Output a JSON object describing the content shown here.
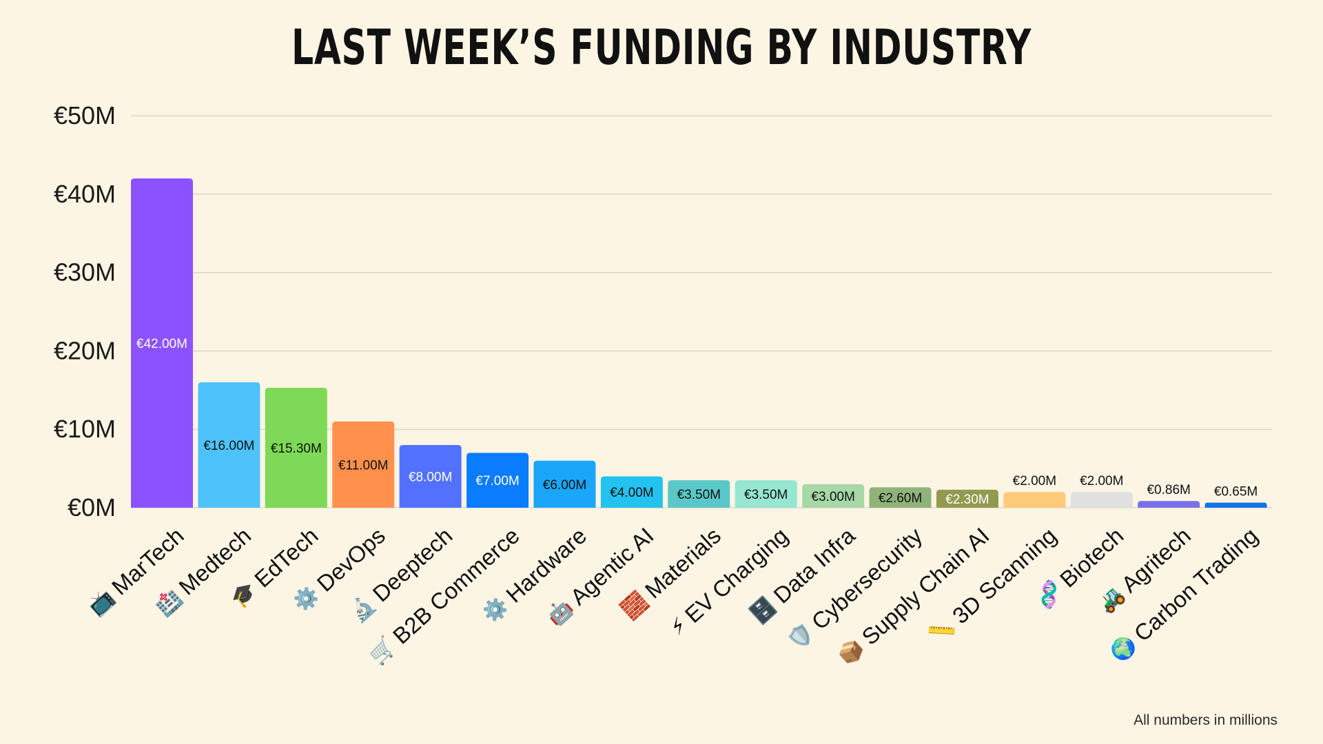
{
  "title": "LAST WEEK’S FUNDING BY INDUSTRY",
  "footnote": "All numbers in millions",
  "chart_data": {
    "type": "bar",
    "title": "LAST WEEK’S FUNDING BY INDUSTRY",
    "xlabel": "",
    "ylabel": "",
    "ylim": [
      0,
      50
    ],
    "grid": true,
    "yticks": [
      {
        "value": 0,
        "label": "€0M"
      },
      {
        "value": 10,
        "label": "€10M"
      },
      {
        "value": 20,
        "label": "€20M"
      },
      {
        "value": 30,
        "label": "€30M"
      },
      {
        "value": 40,
        "label": "€40M"
      },
      {
        "value": 50,
        "label": "€50M"
      }
    ],
    "bars": [
      {
        "category": "MarTech",
        "icon": "📺",
        "icon_name": "tv-icon",
        "value": 42.0,
        "label": "€42.00M",
        "color": "#8c52ff",
        "label_color": "#ffffff"
      },
      {
        "category": "Medtech",
        "icon": "🏥",
        "icon_name": "hospital-icon",
        "value": 16.0,
        "label": "€16.00M",
        "color": "#4ec3fb",
        "label_color": "#111111"
      },
      {
        "category": "EdTech",
        "icon": "🎓",
        "icon_name": "graduation-cap-icon",
        "value": 15.3,
        "label": "€15.30M",
        "color": "#7ed957",
        "label_color": "#111111"
      },
      {
        "category": "DevOps",
        "icon": "⚙️",
        "icon_name": "gear-icon",
        "value": 11.0,
        "label": "€11.00M",
        "color": "#ff914d",
        "label_color": "#111111"
      },
      {
        "category": "Deeptech",
        "icon": "🔬",
        "icon_name": "microscope-icon",
        "value": 8.0,
        "label": "€8.00M",
        "color": "#5271ff",
        "label_color": "#ffffff"
      },
      {
        "category": "B2B Commerce",
        "icon": "🛒",
        "icon_name": "shopping-cart-icon",
        "value": 7.0,
        "label": "€7.00M",
        "color": "#0a7cff",
        "label_color": "#ffffff"
      },
      {
        "category": "Hardware",
        "icon": "⚙️",
        "icon_name": "gear-icon",
        "value": 6.0,
        "label": "€6.00M",
        "color": "#1aa6f9",
        "label_color": "#111111"
      },
      {
        "category": "Agentic AI",
        "icon": "🤖",
        "icon_name": "robot-icon",
        "value": 4.0,
        "label": "€4.00M",
        "color": "#24c2ee",
        "label_color": "#111111"
      },
      {
        "category": "Materials",
        "icon": "🧱",
        "icon_name": "brick-icon",
        "value": 3.5,
        "label": "€3.50M",
        "color": "#5ac8c8",
        "label_color": "#111111"
      },
      {
        "category": "EV Charging",
        "icon": "⚡",
        "icon_name": "lightning-icon",
        "value": 3.5,
        "label": "€3.50M",
        "color": "#96e6d2",
        "label_color": "#111111"
      },
      {
        "category": "Data Infra",
        "icon": "🗄️",
        "icon_name": "file-cabinet-icon",
        "value": 3.0,
        "label": "€3.00M",
        "color": "#a6d8a8",
        "label_color": "#111111"
      },
      {
        "category": "Cybersecurity",
        "icon": "🛡️",
        "icon_name": "shield-icon",
        "value": 2.6,
        "label": "€2.60M",
        "color": "#8fb37a",
        "label_color": "#111111"
      },
      {
        "category": "Supply Chain AI",
        "icon": "📦",
        "icon_name": "package-icon",
        "value": 2.3,
        "label": "€2.30M",
        "color": "#929a4f",
        "label_color": "#ffffff"
      },
      {
        "category": "3D Scanning",
        "icon": "📏",
        "icon_name": "ruler-icon",
        "value": 2.0,
        "label": "€2.00M",
        "color": "#fecb7b",
        "label_color": "#111111"
      },
      {
        "category": "Biotech",
        "icon": "🧬",
        "icon_name": "dna-icon",
        "value": 2.0,
        "label": "€2.00M",
        "color": "#e0e0e0",
        "label_color": "#111111"
      },
      {
        "category": "Agritech",
        "icon": "🚜",
        "icon_name": "tractor-icon",
        "value": 0.86,
        "label": "€0.86M",
        "color": "#7b71e6",
        "label_color": "#111111"
      },
      {
        "category": "Carbon Trading",
        "icon": "🌍",
        "icon_name": "globe-icon",
        "value": 0.65,
        "label": "€0.65M",
        "color": "#1473e6",
        "label_color": "#111111"
      }
    ]
  }
}
